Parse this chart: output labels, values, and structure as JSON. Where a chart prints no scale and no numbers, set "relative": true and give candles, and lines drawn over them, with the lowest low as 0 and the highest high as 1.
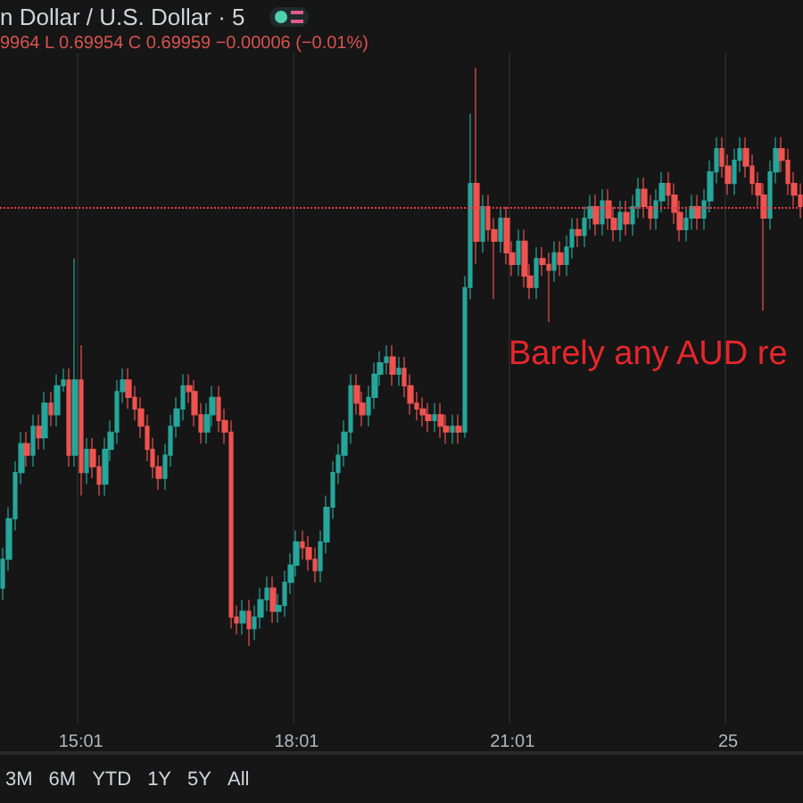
{
  "chart_data": {
    "type": "candlestick",
    "title": "n Dollar / U.S. Dollar · 5",
    "relative": true,
    "grid": "x",
    "categories": [
      null,
      null,
      null,
      null,
      null,
      null,
      null,
      null,
      null,
      null,
      null,
      null,
      null,
      "15:01",
      null,
      null,
      null,
      null,
      null,
      null,
      null,
      null,
      null,
      null,
      null,
      null,
      null,
      null,
      null,
      null,
      null,
      null,
      null,
      null,
      null,
      null,
      null,
      null,
      null,
      null,
      null,
      null,
      null,
      null,
      null,
      null,
      null,
      null,
      null,
      "18:01",
      null,
      null,
      null,
      null,
      null,
      null,
      null,
      null,
      null,
      null,
      null,
      null,
      null,
      null,
      null,
      null,
      null,
      null,
      null,
      null,
      null,
      null,
      null,
      null,
      null,
      null,
      null,
      null,
      null,
      null,
      null,
      null,
      null,
      null,
      null,
      "21:01",
      null,
      null,
      null,
      null,
      null,
      null,
      null,
      null,
      null,
      null,
      null,
      null,
      null,
      null,
      null,
      null,
      null,
      null,
      null,
      null,
      null,
      null,
      null,
      null,
      null,
      null,
      null,
      null,
      null,
      null,
      null,
      null,
      null,
      null,
      null,
      "25",
      null,
      null,
      null,
      null,
      null,
      null,
      null,
      null,
      null,
      null,
      null,
      null
    ],
    "colors": [
      "#26a69a",
      "#26a69a",
      "#26a69a",
      "#26a69a",
      "#ef5350",
      "#26a69a",
      "#ef5350",
      "#26a69a",
      "#ef5350",
      "#26a69a",
      "#26a69a",
      "#ef5350",
      "#26a69a",
      "#ef5350",
      "#26a69a",
      "#ef5350",
      "#ef5350",
      "#26a69a",
      "#26a69a",
      "#26a69a",
      "#26a69a",
      "#ef5350",
      "#ef5350",
      "#ef5350",
      "#ef5350",
      "#ef5350",
      "#ef5350",
      "#26a69a",
      "#26a69a",
      "#26a69a",
      "#26a69a",
      "#ef5350",
      "#ef5350",
      "#ef5350",
      "#26a69a",
      "#26a69a",
      "#ef5350",
      "#ef5350",
      "#ef5350",
      "#ef5350",
      "#26a69a",
      "#ef5350",
      "#26a69a",
      "#26a69a",
      "#26a69a",
      "#ef5350",
      "#26a69a",
      "#26a69a",
      "#26a69a",
      "#26a69a",
      "#ef5350",
      "#ef5350",
      "#ef5350",
      "#26a69a",
      "#26a69a",
      "#26a69a",
      "#26a69a",
      "#26a69a",
      "#26a69a",
      "#ef5350",
      "#ef5350",
      "#26a69a",
      "#26a69a",
      "#26a69a",
      "#26a69a",
      "#ef5350",
      "#26a69a",
      "#ef5350",
      "#ef5350",
      "#ef5350",
      "#ef5350",
      "#ef5350",
      "#26a69a",
      "#ef5350",
      "#ef5350",
      "#26a69a",
      "#ef5350",
      "#26a69a",
      "#26a69a",
      "#ef5350",
      "#26a69a",
      "#ef5350",
      "#ef5350",
      "#26a69a",
      "#ef5350",
      "#ef5350",
      "#26a69a",
      "#ef5350",
      "#ef5350",
      "#26a69a",
      "#ef5350",
      "#ef5350",
      "#26a69a",
      "#ef5350",
      "#26a69a",
      "#26a69a",
      "#ef5350",
      "#26a69a",
      "#26a69a",
      "#ef5350",
      "#26a69a",
      "#ef5350",
      "#ef5350",
      "#26a69a",
      "#ef5350",
      "#26a69a",
      "#26a69a",
      "#ef5350",
      "#ef5350",
      "#26a69a",
      "#26a69a",
      "#ef5350",
      "#ef5350",
      "#ef5350",
      "#26a69a",
      "#26a69a",
      "#ef5350",
      "#26a69a",
      "#26a69a",
      "#26a69a",
      "#ef5350",
      "#ef5350",
      "#26a69a",
      "#26a69a",
      "#ef5350",
      "#ef5350",
      "#ef5350",
      "#ef5350",
      "#26a69a",
      "#26a69a",
      "#ef5350",
      "#ef5350",
      "#ef5350",
      "#ef5350"
    ],
    "ohlc": [
      [
        0.1,
        0.17,
        0.08,
        0.15
      ],
      [
        0.15,
        0.24,
        0.13,
        0.22
      ],
      [
        0.22,
        0.32,
        0.2,
        0.3
      ],
      [
        0.3,
        0.37,
        0.28,
        0.35
      ],
      [
        0.35,
        0.37,
        0.31,
        0.33
      ],
      [
        0.33,
        0.4,
        0.31,
        0.38
      ],
      [
        0.38,
        0.4,
        0.34,
        0.36
      ],
      [
        0.36,
        0.44,
        0.34,
        0.42
      ],
      [
        0.42,
        0.44,
        0.38,
        0.4
      ],
      [
        0.4,
        0.47,
        0.38,
        0.45
      ],
      [
        0.45,
        0.48,
        0.44,
        0.46
      ],
      [
        0.46,
        0.48,
        0.31,
        0.33
      ],
      [
        0.33,
        0.67,
        0.31,
        0.46
      ],
      [
        0.46,
        0.52,
        0.26,
        0.3
      ],
      [
        0.3,
        0.36,
        0.28,
        0.34
      ],
      [
        0.34,
        0.36,
        0.29,
        0.31
      ],
      [
        0.31,
        0.33,
        0.26,
        0.28
      ],
      [
        0.28,
        0.36,
        0.26,
        0.34
      ],
      [
        0.34,
        0.39,
        0.32,
        0.37
      ],
      [
        0.37,
        0.46,
        0.35,
        0.44
      ],
      [
        0.44,
        0.48,
        0.42,
        0.46
      ],
      [
        0.46,
        0.48,
        0.41,
        0.43
      ],
      [
        0.43,
        0.45,
        0.39,
        0.41
      ],
      [
        0.41,
        0.43,
        0.36,
        0.38
      ],
      [
        0.38,
        0.4,
        0.32,
        0.34
      ],
      [
        0.34,
        0.36,
        0.29,
        0.31
      ],
      [
        0.31,
        0.33,
        0.27,
        0.29
      ],
      [
        0.29,
        0.35,
        0.27,
        0.33
      ],
      [
        0.33,
        0.4,
        0.31,
        0.38
      ],
      [
        0.38,
        0.43,
        0.36,
        0.41
      ],
      [
        0.41,
        0.47,
        0.39,
        0.45
      ],
      [
        0.45,
        0.47,
        0.42,
        0.44
      ],
      [
        0.44,
        0.46,
        0.38,
        0.4
      ],
      [
        0.4,
        0.42,
        0.35,
        0.37
      ],
      [
        0.37,
        0.42,
        0.35,
        0.4
      ],
      [
        0.4,
        0.45,
        0.38,
        0.43
      ],
      [
        0.43,
        0.45,
        0.37,
        0.39
      ],
      [
        0.39,
        0.41,
        0.35,
        0.37
      ],
      [
        0.37,
        0.39,
        0.03,
        0.05
      ],
      [
        0.05,
        0.07,
        0.02,
        0.04
      ],
      [
        0.04,
        0.08,
        0.02,
        0.06
      ],
      [
        0.06,
        0.08,
        0,
        0.03
      ],
      [
        0.03,
        0.07,
        0.01,
        0.05
      ],
      [
        0.05,
        0.1,
        0.03,
        0.08
      ],
      [
        0.08,
        0.12,
        0.06,
        0.1
      ],
      [
        0.1,
        0.12,
        0.04,
        0.06
      ],
      [
        0.06,
        0.09,
        0.04,
        0.07
      ],
      [
        0.07,
        0.13,
        0.05,
        0.11
      ],
      [
        0.11,
        0.16,
        0.09,
        0.14
      ],
      [
        0.14,
        0.2,
        0.12,
        0.18
      ],
      [
        0.18,
        0.2,
        0.15,
        0.17
      ],
      [
        0.17,
        0.19,
        0.13,
        0.15
      ],
      [
        0.15,
        0.17,
        0.11,
        0.13
      ],
      [
        0.13,
        0.2,
        0.11,
        0.18
      ],
      [
        0.18,
        0.26,
        0.16,
        0.24
      ],
      [
        0.24,
        0.32,
        0.22,
        0.3
      ],
      [
        0.3,
        0.35,
        0.28,
        0.33
      ],
      [
        0.33,
        0.39,
        0.31,
        0.37
      ],
      [
        0.37,
        0.47,
        0.35,
        0.45
      ],
      [
        0.45,
        0.47,
        0.4,
        0.42
      ],
      [
        0.42,
        0.44,
        0.38,
        0.4
      ],
      [
        0.4,
        0.45,
        0.38,
        0.43
      ],
      [
        0.43,
        0.49,
        0.41,
        0.47
      ],
      [
        0.47,
        0.51,
        0.45,
        0.49
      ],
      [
        0.49,
        0.52,
        0.47,
        0.5
      ],
      [
        0.5,
        0.52,
        0.45,
        0.47
      ],
      [
        0.47,
        0.5,
        0.45,
        0.48
      ],
      [
        0.48,
        0.5,
        0.43,
        0.45
      ],
      [
        0.45,
        0.47,
        0.4,
        0.42
      ],
      [
        0.42,
        0.44,
        0.39,
        0.41
      ],
      [
        0.41,
        0.43,
        0.38,
        0.4
      ],
      [
        0.4,
        0.42,
        0.37,
        0.39
      ],
      [
        0.39,
        0.42,
        0.37,
        0.4
      ],
      [
        0.4,
        0.42,
        0.36,
        0.38
      ],
      [
        0.38,
        0.4,
        0.35,
        0.37
      ],
      [
        0.37,
        0.4,
        0.35,
        0.38
      ],
      [
        0.38,
        0.4,
        0.35,
        0.37
      ],
      [
        0.37,
        0.64,
        0.36,
        0.62
      ],
      [
        0.62,
        0.92,
        0.6,
        0.8
      ],
      [
        0.8,
        1,
        0.66,
        0.7
      ],
      [
        0.7,
        0.78,
        0.68,
        0.76
      ],
      [
        0.76,
        0.78,
        0.7,
        0.72
      ],
      [
        0.72,
        0.74,
        0.6,
        0.7
      ],
      [
        0.7,
        0.76,
        0.68,
        0.74
      ],
      [
        0.74,
        0.76,
        0.66,
        0.68
      ],
      [
        0.68,
        0.7,
        0.64,
        0.66
      ],
      [
        0.66,
        0.72,
        0.64,
        0.7
      ],
      [
        0.7,
        0.72,
        0.62,
        0.64
      ],
      [
        0.64,
        0.66,
        0.6,
        0.62
      ],
      [
        0.62,
        0.69,
        0.6,
        0.67
      ],
      [
        0.67,
        0.69,
        0.64,
        0.66
      ],
      [
        0.66,
        0.68,
        0.56,
        0.65
      ],
      [
        0.65,
        0.7,
        0.63,
        0.68
      ],
      [
        0.68,
        0.7,
        0.64,
        0.66
      ],
      [
        0.66,
        0.71,
        0.64,
        0.69
      ],
      [
        0.69,
        0.74,
        0.67,
        0.72
      ],
      [
        0.72,
        0.74,
        0.69,
        0.71
      ],
      [
        0.71,
        0.76,
        0.69,
        0.74
      ],
      [
        0.74,
        0.78,
        0.72,
        0.76
      ],
      [
        0.76,
        0.78,
        0.71,
        0.73
      ],
      [
        0.73,
        0.79,
        0.71,
        0.77
      ],
      [
        0.77,
        0.79,
        0.72,
        0.74
      ],
      [
        0.74,
        0.76,
        0.7,
        0.72
      ],
      [
        0.72,
        0.77,
        0.7,
        0.75
      ],
      [
        0.75,
        0.77,
        0.71,
        0.73
      ],
      [
        0.73,
        0.78,
        0.71,
        0.76
      ],
      [
        0.76,
        0.81,
        0.74,
        0.79
      ],
      [
        0.79,
        0.81,
        0.74,
        0.76
      ],
      [
        0.76,
        0.78,
        0.72,
        0.74
      ],
      [
        0.74,
        0.79,
        0.72,
        0.77
      ],
      [
        0.77,
        0.82,
        0.75,
        0.8
      ],
      [
        0.8,
        0.82,
        0.76,
        0.78
      ],
      [
        0.78,
        0.8,
        0.73,
        0.75
      ],
      [
        0.75,
        0.77,
        0.7,
        0.72
      ],
      [
        0.72,
        0.76,
        0.7,
        0.74
      ],
      [
        0.74,
        0.78,
        0.72,
        0.76
      ],
      [
        0.76,
        0.78,
        0.72,
        0.74
      ],
      [
        0.74,
        0.79,
        0.72,
        0.77
      ],
      [
        0.77,
        0.84,
        0.75,
        0.82
      ],
      [
        0.82,
        0.88,
        0.8,
        0.86
      ],
      [
        0.86,
        0.88,
        0.81,
        0.83
      ],
      [
        0.83,
        0.85,
        0.78,
        0.8
      ],
      [
        0.8,
        0.86,
        0.78,
        0.84
      ],
      [
        0.84,
        0.88,
        0.82,
        0.86
      ],
      [
        0.86,
        0.88,
        0.81,
        0.83
      ],
      [
        0.83,
        0.85,
        0.78,
        0.8
      ],
      [
        0.8,
        0.82,
        0.76,
        0.78
      ],
      [
        0.78,
        0.8,
        0.58,
        0.74
      ],
      [
        0.74,
        0.84,
        0.72,
        0.82
      ],
      [
        0.82,
        0.88,
        0.8,
        0.86
      ],
      [
        0.86,
        0.88,
        0.82,
        0.84
      ],
      [
        0.84,
        0.86,
        0.78,
        0.8
      ],
      [
        0.8,
        0.82,
        0.76,
        0.78
      ],
      [
        0.78,
        0.8,
        0.74,
        0.76
      ]
    ],
    "ref_lines": [
      {
        "axis": "y",
        "value": 0.76,
        "color": "#f23645",
        "line_style": "dotted"
      }
    ],
    "annotations": [
      "9964 L 0.69954 C 0.69959 −0.00006 (−0.01%)",
      "Barely any AUD re",
      "3M",
      "6M",
      "YTD",
      "1Y",
      "5Y",
      "All"
    ]
  }
}
